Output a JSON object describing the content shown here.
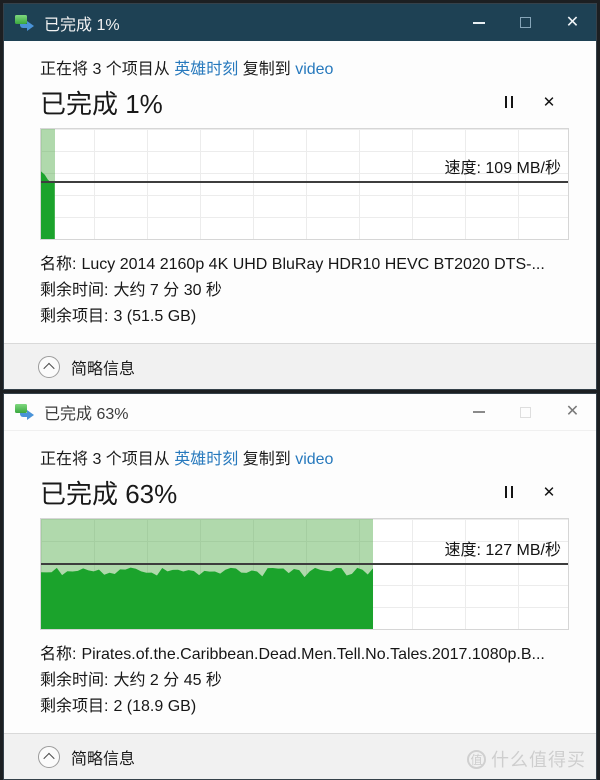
{
  "glyphs": {
    "close": "✕"
  },
  "colors": {
    "titlebar_active": "#1e4154",
    "link": "#2779bd",
    "progress_light_fill": "rgba(80,170,70,0.45)",
    "speed_area_fill": "#1ba32c"
  },
  "watermark": {
    "badge": "值",
    "text": "什么值得买"
  },
  "dialogs": [
    {
      "titlebar": {
        "title": "已完成 1%"
      },
      "header": {
        "prefix": "正在将 3 个项目从",
        "source": "英雄时刻",
        "middle": "复制到",
        "destination": "video"
      },
      "progress_heading": "已完成 1%",
      "chart": {
        "speed_label": "速度: 109 MB/秒",
        "speed_value_mb_per_s": 109,
        "progress_percent": 1,
        "fill_percent": 2.6,
        "speed_line_percent": 47,
        "wavy": false
      },
      "details": [
        {
          "label": "名称:",
          "value": "Lucy 2014 2160p 4K UHD BluRay HDR10 HEVC BT2020 DTS-..."
        },
        {
          "label": "剩余时间:",
          "value": "大约 7 分 30 秒"
        },
        {
          "label": "剩余项目:",
          "value": "3 (51.5 GB)"
        }
      ],
      "footer": {
        "label": "简略信息"
      }
    },
    {
      "titlebar": {
        "title": "已完成 63%"
      },
      "header": {
        "prefix": "正在将 3 个项目从",
        "source": "英雄时刻",
        "middle": "复制到",
        "destination": "video"
      },
      "progress_heading": "已完成 63%",
      "chart": {
        "speed_label": "速度: 127 MB/秒",
        "speed_value_mb_per_s": 127,
        "progress_percent": 63,
        "fill_percent": 63,
        "speed_line_percent": 40,
        "wavy": true
      },
      "details": [
        {
          "label": "名称:",
          "value": "Pirates.of.the.Caribbean.Dead.Men.Tell.No.Tales.2017.1080p.B..."
        },
        {
          "label": "剩余时间:",
          "value": "大约 2 分 45 秒"
        },
        {
          "label": "剩余项目:",
          "value": "2 (18.9 GB)"
        }
      ],
      "footer": {
        "label": "简略信息"
      }
    }
  ]
}
